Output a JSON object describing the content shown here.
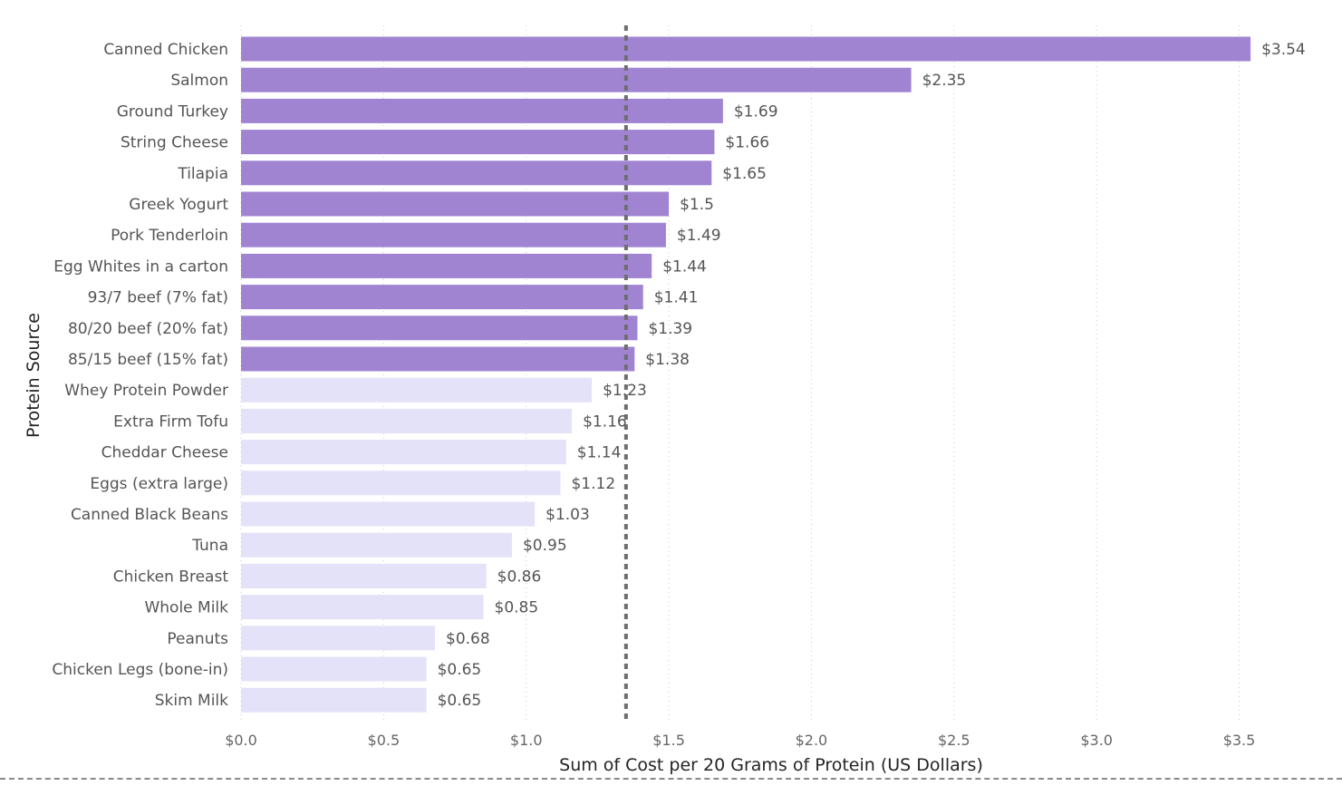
{
  "chart_data": {
    "type": "bar",
    "orientation": "horizontal",
    "title": "",
    "xlabel": "Sum of Cost per 20 Grams of Protein (US Dollars)",
    "ylabel": "Protein Source",
    "xlim": [
      0,
      3.6
    ],
    "x_ticks": [
      0.0,
      0.5,
      1.0,
      1.5,
      2.0,
      2.5,
      3.0,
      3.5
    ],
    "x_tick_labels": [
      "$0.0",
      "$0.5",
      "$1.0",
      "$1.5",
      "$2.0",
      "$2.5",
      "$3.0",
      "$3.5"
    ],
    "grid": "vertical dotted",
    "legend": "none",
    "reference_line": {
      "value": 1.35,
      "style": "dashed",
      "color": "#6e6e6e"
    },
    "colors": {
      "above_reference": "#a084d2",
      "below_reference": "#e4e2f8"
    },
    "categories": [
      "Canned Chicken",
      "Salmon",
      "Ground Turkey",
      "String Cheese",
      "Tilapia",
      "Greek Yogurt",
      "Pork Tenderloin",
      "Egg Whites in a carton",
      "93/7 beef (7% fat)",
      "80/20 beef (20% fat)",
      "85/15 beef (15% fat)",
      "Whey Protein Powder",
      "Extra Firm Tofu",
      "Cheddar Cheese",
      "Eggs (extra large)",
      "Canned Black Beans",
      "Tuna",
      "Chicken Breast",
      "Whole Milk",
      "Peanuts",
      "Chicken Legs (bone-in)",
      "Skim Milk"
    ],
    "values": [
      3.54,
      2.35,
      1.69,
      1.66,
      1.65,
      1.5,
      1.49,
      1.44,
      1.41,
      1.39,
      1.38,
      1.23,
      1.16,
      1.14,
      1.12,
      1.03,
      0.95,
      0.86,
      0.85,
      0.68,
      0.65,
      0.65
    ],
    "value_labels": [
      "$3.54",
      "$2.35",
      "$1.69",
      "$1.66",
      "$1.65",
      "$1.5",
      "$1.49",
      "$1.44",
      "$1.41",
      "$1.39",
      "$1.38",
      "$1.23",
      "$1.16",
      "$1.14",
      "$1.12",
      "$1.03",
      "$0.95",
      "$0.86",
      "$0.85",
      "$0.68",
      "$0.65",
      "$0.65"
    ]
  }
}
